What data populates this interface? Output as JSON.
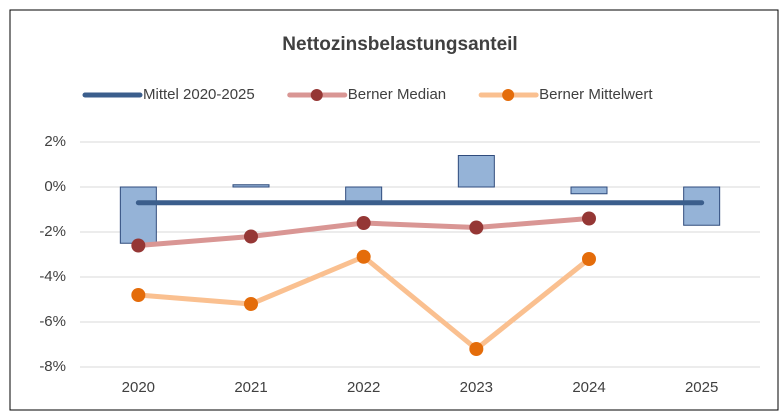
{
  "chart_data": {
    "type": "combo",
    "title": "Nettozinsbelastungsanteil",
    "categories": [
      "2020",
      "2021",
      "2022",
      "2023",
      "2024",
      "2025"
    ],
    "series": [
      {
        "type": "bar",
        "color": "#95b3d7",
        "values": [
          -2.5,
          0.1,
          -0.7,
          1.4,
          -0.3,
          -1.7
        ]
      },
      {
        "type": "line",
        "name": "Mittel 2020-2025",
        "color": "#3b5e8c",
        "values": [
          -0.7,
          -0.7,
          -0.7,
          -0.7,
          -0.7,
          -0.7
        ]
      },
      {
        "type": "line",
        "name": "Berner Median",
        "color": "#d99694",
        "marker_color": "#953735",
        "values": [
          -2.6,
          -2.2,
          -1.6,
          -1.8,
          -1.4,
          null
        ]
      },
      {
        "type": "line",
        "name": "Berner Mittelwert",
        "color": "#fac090",
        "marker_color": "#e46c0a",
        "values": [
          -4.8,
          -5.2,
          -3.1,
          -7.2,
          -3.2,
          null
        ]
      }
    ],
    "ylim": [
      -8,
      2
    ],
    "yticks": [
      {
        "value": -8,
        "label": "-8%"
      },
      {
        "value": -6,
        "label": "-6%"
      },
      {
        "value": -4,
        "label": "-4%"
      },
      {
        "value": -2,
        "label": "-2%"
      },
      {
        "value": 0,
        "label": "0%"
      },
      {
        "value": 2,
        "label": "2%"
      }
    ],
    "grid": true,
    "legend": "top"
  }
}
